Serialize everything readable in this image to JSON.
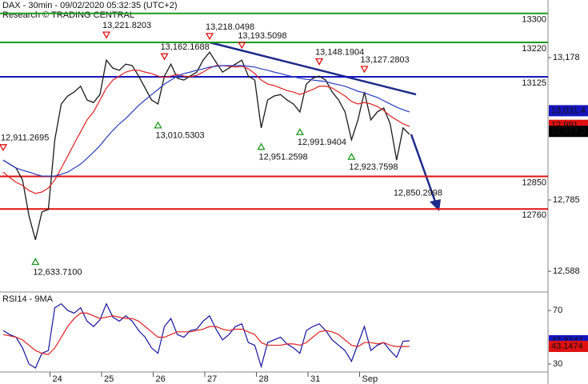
{
  "chart_data": [
    {
      "type": "line",
      "title": "DAX - 30min - 09/02/2020 05:32:35 (UTC+2)",
      "subtitle": "Research © TRADING CENTRAL",
      "categories": [
        null,
        null,
        null,
        null,
        null,
        null,
        null,
        null,
        "24",
        null,
        null,
        null,
        null,
        null,
        null,
        null,
        "25",
        null,
        null,
        null,
        null,
        null,
        null,
        null,
        "26",
        null,
        null,
        null,
        null,
        null,
        null,
        null,
        "27",
        null,
        null,
        null,
        null,
        null,
        null,
        null,
        "28",
        null,
        null,
        null,
        null,
        null,
        null,
        null,
        "31",
        null,
        null,
        null,
        null,
        null,
        null,
        null,
        "Sep",
        null,
        null,
        null,
        null,
        null,
        null,
        null
      ],
      "ylim": [
        12531,
        13337
      ],
      "yticks": [
        {
          "value": 13178,
          "label": "13,178"
        },
        {
          "value": 12785,
          "label": "12,785"
        },
        {
          "value": 12588,
          "label": "12,588"
        }
      ],
      "grid": false,
      "series": [
        {
          "color": "#1a1a1a",
          "values": [
            12895,
            12884,
            12873,
            12840,
            12741,
            12675,
            12752,
            12759,
            12951,
            13050,
            13072,
            13083,
            13099,
            13061,
            13054,
            13076,
            13171,
            13149,
            13143,
            13160,
            13156,
            13127,
            13094,
            13061,
            13050,
            13127,
            13160,
            13121,
            13116,
            13127,
            13138,
            13171,
            13193,
            13165,
            13138,
            13149,
            13160,
            13171,
            13127,
            13116,
            12984,
            13061,
            13072,
            13076,
            13061,
            13050,
            13028,
            13105,
            13121,
            13127,
            13116,
            13083,
            13061,
            13028,
            12951,
            13006,
            13083,
            13006,
            13028,
            13039,
            12995,
            12895,
            12984,
            12966
          ]
        },
        {
          "color": "#e02020",
          "values": [
            12862,
            12847,
            12834,
            12825,
            12811,
            12803,
            12807,
            12818,
            12840,
            12873,
            12906,
            12940,
            12973,
            13006,
            13028,
            13061,
            13094,
            13116,
            13127,
            13138,
            13143,
            13143,
            13138,
            13134,
            13127,
            13123,
            13127,
            13132,
            13127,
            13125,
            13129,
            13138,
            13149,
            13156,
            13156,
            13154,
            13152,
            13154,
            13147,
            13134,
            13116,
            13105,
            13101,
            13094,
            13087,
            13083,
            13076,
            13083,
            13090,
            13099,
            13099,
            13094,
            13083,
            13072,
            13057,
            13050,
            13054,
            13050,
            13043,
            13032,
            13017,
            13006,
            12995,
            12988
          ]
        },
        {
          "color": "#2a3cc0",
          "values": [
            12895,
            12884,
            12873,
            12867,
            12862,
            12856,
            12851,
            12851,
            12851,
            12856,
            12862,
            12873,
            12884,
            12900,
            12917,
            12935,
            12957,
            12977,
            12995,
            13010,
            13028,
            13046,
            13061,
            13076,
            13090,
            13105,
            13116,
            13127,
            13134,
            13138,
            13143,
            13147,
            13152,
            13154,
            13156,
            13156,
            13156,
            13156,
            13154,
            13152,
            13147,
            13143,
            13138,
            13134,
            13129,
            13125,
            13121,
            13118,
            13116,
            13114,
            13112,
            13107,
            13103,
            13099,
            13092,
            13085,
            13081,
            13074,
            13068,
            13059,
            13050,
            13041,
            13034,
            13028
          ]
        }
      ],
      "levels": [
        {
          "value": 13300,
          "label": "13300",
          "color": "#1f9a1f"
        },
        {
          "value": 13220,
          "label": "13220",
          "color": "#1f9a1f"
        },
        {
          "value": 13125,
          "label": "13125",
          "color": "#1515c0"
        },
        {
          "value": 12850,
          "label": "12850",
          "color": "#e01010"
        },
        {
          "value": 12760,
          "label": "12760",
          "color": "#e01010"
        }
      ],
      "peaks": [
        {
          "value": 12911.2695,
          "label": "12,911.2695"
        },
        {
          "value": 13221.8203,
          "label": "13,221.8203"
        },
        {
          "value": 13162.1688,
          "label": "13,162.1688"
        },
        {
          "value": 13218.0498,
          "label": "13,218.0498"
        },
        {
          "value": 13193.5098,
          "label": "13,193.5098"
        },
        {
          "value": 13148.1904,
          "label": "13,148.1904"
        },
        {
          "value": 13127.2803,
          "label": "13,127.2803"
        }
      ],
      "troughs": [
        {
          "value": 13010.5303,
          "label": "13,010.5303"
        },
        {
          "value": 12951.2598,
          "label": "12,951.2598"
        },
        {
          "value": 12991.9404,
          "label": "12,991.9404"
        },
        {
          "value": 12923.7598,
          "label": "12,923.7598"
        },
        {
          "value": 12633.71,
          "label": "12,633.7100"
        }
      ],
      "target": {
        "value": 12850.2998,
        "label": "12,850.2998"
      },
      "price_tags": [
        {
          "value": 13031.4,
          "label": "13,031.4",
          "color": "#1515c0"
        },
        {
          "value": 12991,
          "label": "12,991",
          "color": "#e01010"
        },
        {
          "value": 12974.3,
          "label": "12,974.3",
          "color": "#000000"
        }
      ]
    },
    {
      "type": "line",
      "title": "RSI14 - 9MA",
      "ylim": [
        24,
        82
      ],
      "yticks": [
        70,
        30
      ],
      "series": [
        {
          "color": "#1515a0",
          "values": [
            55,
            52,
            50,
            42,
            30,
            27,
            38,
            40,
            72,
            75,
            70,
            68,
            72,
            62,
            58,
            63,
            75,
            65,
            62,
            66,
            62,
            55,
            50,
            42,
            38,
            58,
            64,
            52,
            50,
            55,
            56,
            62,
            66,
            56,
            48,
            52,
            58,
            60,
            46,
            44,
            28,
            46,
            48,
            50,
            45,
            42,
            38,
            55,
            58,
            60,
            55,
            48,
            44,
            40,
            32,
            45,
            58,
            40,
            44,
            46,
            40,
            35,
            47,
            47.3
          ]
        },
        {
          "color": "#e02020",
          "values": [
            52,
            51,
            50,
            48,
            44,
            40,
            38,
            37,
            42,
            50,
            58,
            64,
            68,
            68,
            66,
            64,
            65,
            66,
            65,
            64,
            64,
            62,
            58,
            54,
            50,
            50,
            52,
            54,
            54,
            54,
            55,
            56,
            58,
            58,
            56,
            55,
            56,
            56,
            54,
            52,
            46,
            44,
            44,
            44,
            45,
            45,
            44,
            46,
            50,
            54,
            55,
            54,
            52,
            48,
            44,
            43,
            46,
            46,
            45,
            46,
            44,
            43,
            43,
            43.1
          ]
        }
      ],
      "price_tags": [
        {
          "value": 47.3247,
          "label": "47.3247",
          "color": "#1515c0"
        },
        {
          "value": 43.1474,
          "label": "43.1474",
          "color": "#e01010"
        }
      ]
    }
  ]
}
